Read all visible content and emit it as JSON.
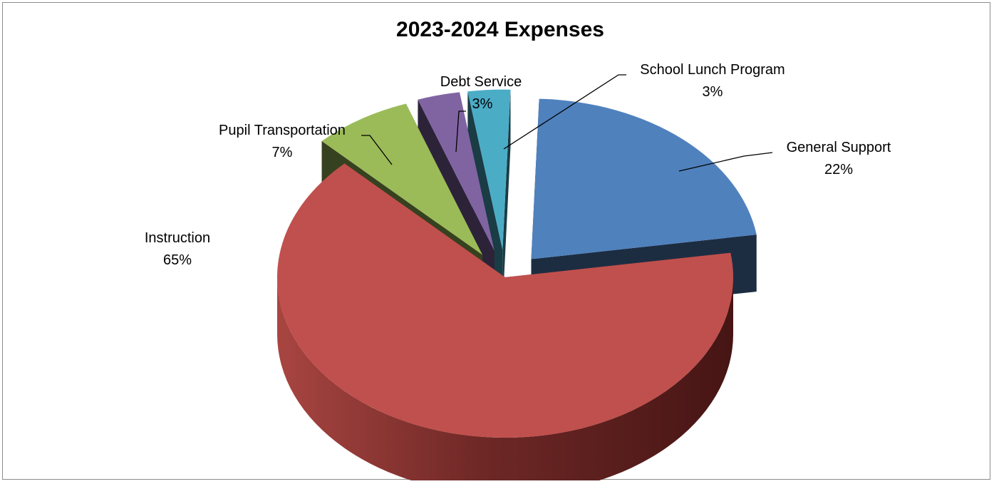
{
  "chart_data": {
    "type": "pie",
    "style": "3d-exploded",
    "title": "2023-2024 Expenses",
    "legend": "none",
    "slices": [
      {
        "label": "General Support",
        "value": 22,
        "display": "22%",
        "color": "#4f81bd"
      },
      {
        "label": "Instruction",
        "value": 65,
        "display": "65%",
        "color": "#c0504d"
      },
      {
        "label": "Pupil Transportation",
        "value": 7,
        "display": "7%",
        "color": "#9bbb59"
      },
      {
        "label": "Debt Service",
        "value": 3,
        "display": "3%",
        "color": "#8064a2"
      },
      {
        "label": "School Lunch Program",
        "value": 3,
        "display": "3%",
        "color": "#4bacc6"
      }
    ]
  }
}
